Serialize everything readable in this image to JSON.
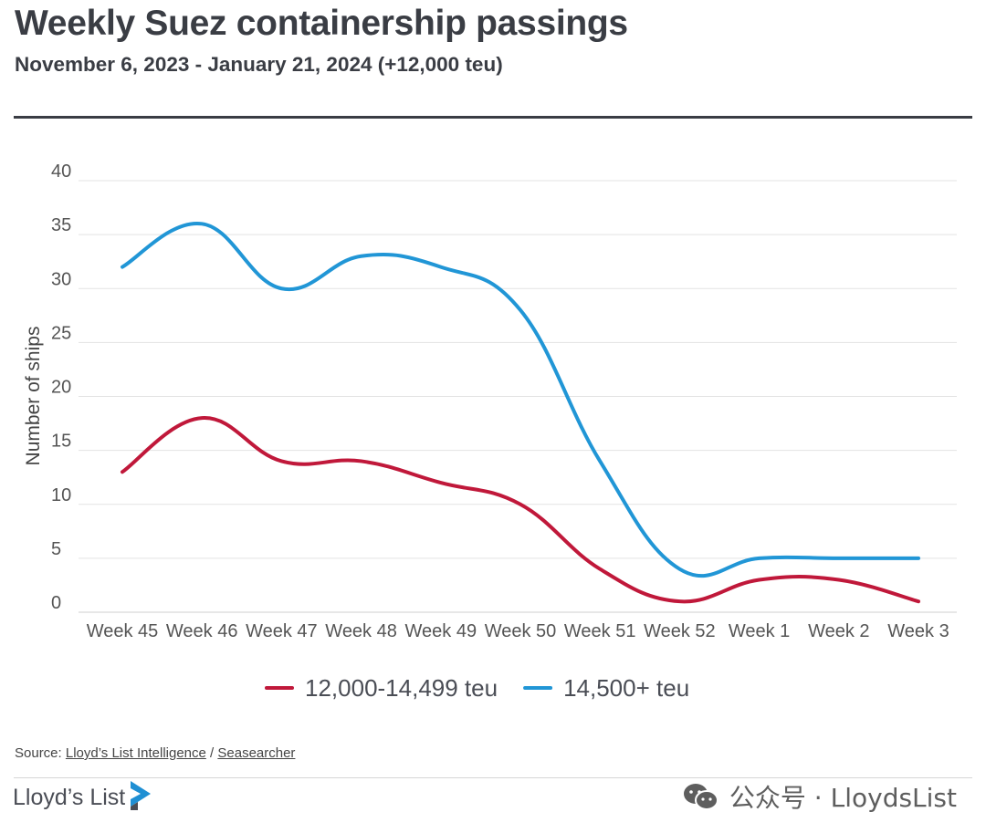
{
  "header": {
    "title": "Weekly Suez containership passings",
    "subtitle": "November 6, 2023 - January 21, 2024 (+12,000 teu)"
  },
  "chart_data": {
    "type": "line",
    "title": "Weekly Suez containership passings",
    "subtitle": "November 6, 2023 - January 21, 2024 (+12,000 teu)",
    "xlabel": "",
    "ylabel": "Number of ships",
    "ylim": [
      0,
      40
    ],
    "yticks": [
      0,
      5,
      10,
      15,
      20,
      25,
      30,
      35,
      40
    ],
    "grid": true,
    "legend_position": "bottom",
    "categories": [
      "Week 45",
      "Week 46",
      "Week 47",
      "Week 48",
      "Week 49",
      "Week 50",
      "Week 51",
      "Week 52",
      "Week 1",
      "Week 2",
      "Week 3"
    ],
    "series": [
      {
        "name": "12,000-14,499 teu",
        "color": "#c0183a",
        "values": [
          13,
          18,
          14,
          14,
          12,
          10,
          4,
          1,
          3,
          3,
          1
        ]
      },
      {
        "name": "14,500+ teu",
        "color": "#2196d6",
        "values": [
          32,
          36,
          30,
          33,
          32,
          28,
          14,
          4,
          5,
          5,
          5
        ]
      }
    ]
  },
  "source": {
    "prefix": "Source: ",
    "link1": "Lloyd’s List Intelligence",
    "separator": " / ",
    "link2": "Seasearcher"
  },
  "brand": {
    "name": "Lloyd’s List",
    "logo_icon": "lloyds-list-logo-icon"
  },
  "watermark": {
    "text": "公众号 · LloydsList",
    "icon": "wechat-icon"
  },
  "colors": {
    "text_dark": "#3a3d44",
    "grid": "#e3e3e3",
    "logo_blue": "#1f8fd3"
  }
}
